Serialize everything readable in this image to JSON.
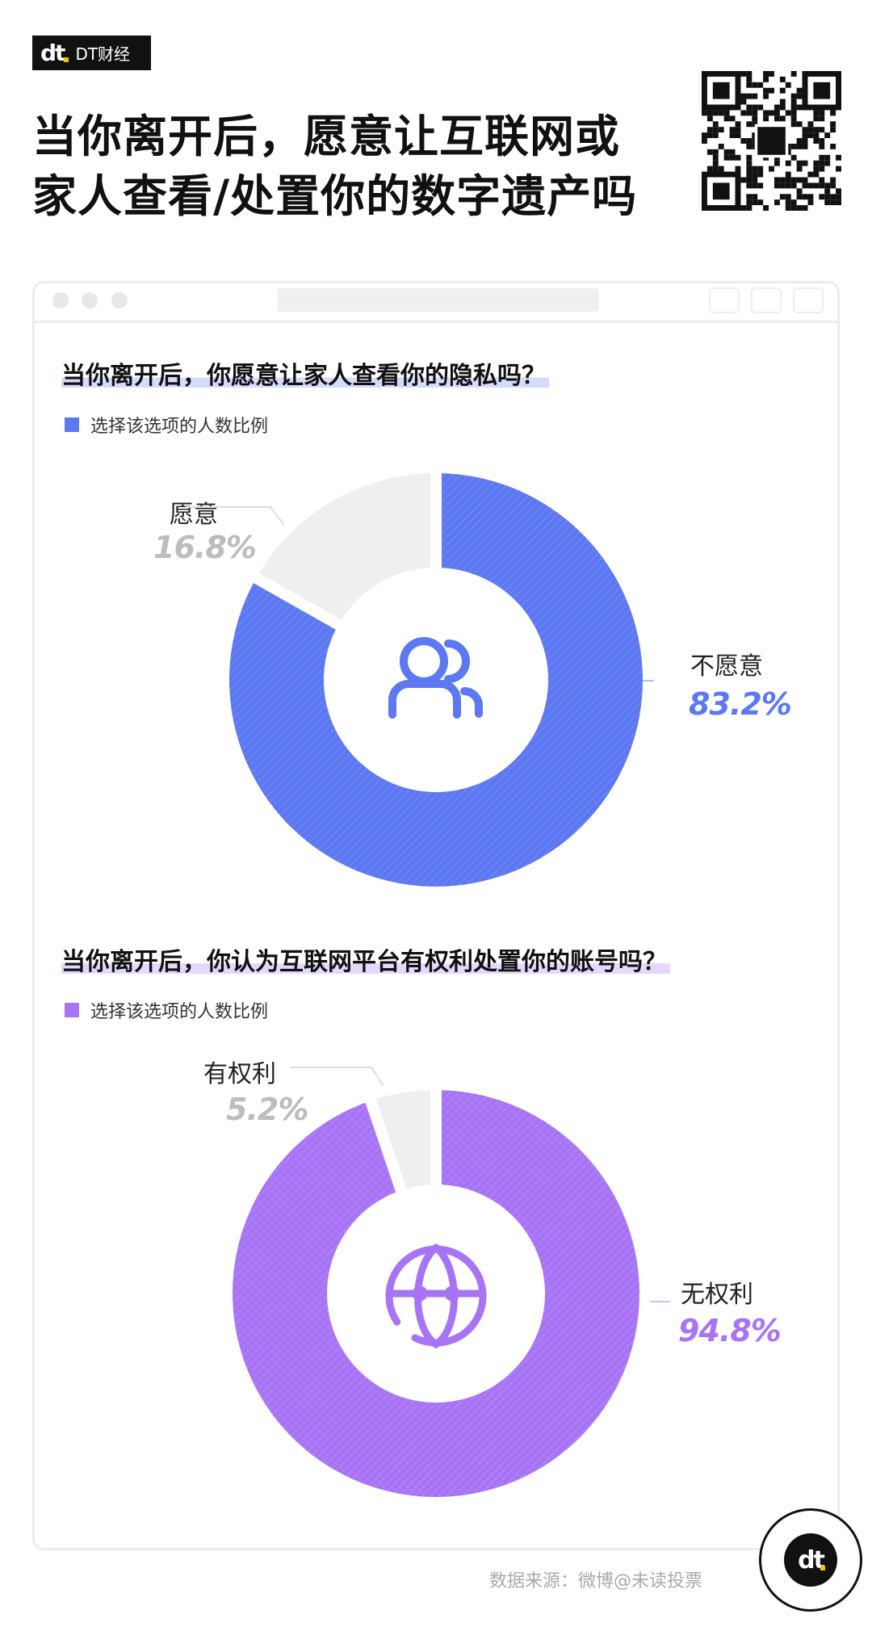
{
  "brand": {
    "logo_text": "dt",
    "name": "DT财经"
  },
  "title": {
    "line1": "当你离开后，愿意让互联网或",
    "line2": "家人查看/处置你的数字遗产吗"
  },
  "source": "数据来源：微博@未读投票",
  "chart_data": [
    {
      "type": "pie",
      "variant": "donut",
      "title": "当你离开后，你愿意让家人查看你的隐私吗？",
      "legend": "选择该选项的人数比例",
      "center_icon": "users-icon",
      "color": "#5c78f2",
      "other_color": "#efefef",
      "slices": [
        {
          "label": "不愿意",
          "value": 83.2,
          "value_label": "83.2%"
        },
        {
          "label": "愿意",
          "value": 16.8,
          "value_label": "16.8%"
        }
      ]
    },
    {
      "type": "pie",
      "variant": "donut",
      "title": "当你离开后，你认为互联网平台有权利处置你的账号吗？",
      "legend": "选择该选项的人数比例",
      "center_icon": "globe-icon",
      "color": "#a874f6",
      "other_color": "#efefef",
      "slices": [
        {
          "label": "无权利",
          "value": 94.8,
          "value_label": "94.8%"
        },
        {
          "label": "有权利",
          "value": 5.2,
          "value_label": "5.2%"
        }
      ]
    }
  ]
}
